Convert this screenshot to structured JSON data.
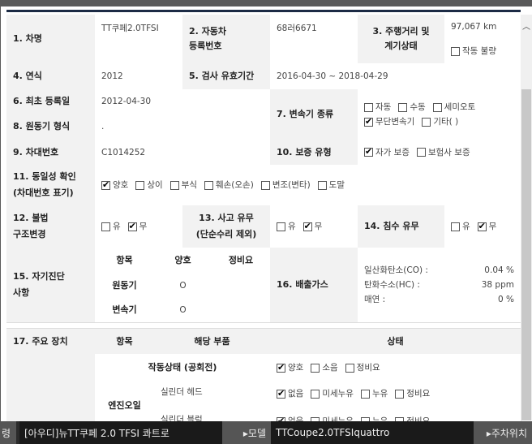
{
  "labels": {
    "car_name": "1. 차명",
    "reg_no": "2. 자동차\n등록번호",
    "mileage": "3. 주행거리 및\n계기상태",
    "year": "4. 연식",
    "inspect": "5. 검사 유효기간",
    "first_reg": "6. 최초 등록일",
    "trans": "7. 변속기 종류",
    "engine_type": "8. 원동기 형식",
    "vin": "9. 차대번호",
    "warranty": "10. 보증 유형",
    "identity": "11. 동일성 확인\n(차대번호 표기)",
    "illegal": "12. 불법\n구조변경",
    "accident": "13. 사고 유무\n(단순수리 제외)",
    "flood": "14. 침수 유무",
    "selfdiag": "15. 자기진단\n사항",
    "emission": "16. 배출가스",
    "major": "17. 주요 장치"
  },
  "values": {
    "car_name": "TT쿠페2.0TFSI",
    "reg_no": "68러6671",
    "mileage": "97,067 km",
    "year": "2012",
    "inspect": "2016-04-30 ~ 2018-04-29",
    "first_reg": "2012-04-30",
    "engine_type": ".",
    "vin": "C1014252"
  },
  "checks": {
    "gauge": [
      {
        "label": "작동 불량",
        "checked": false
      }
    ],
    "trans": [
      {
        "label": "자동",
        "checked": false
      },
      {
        "label": "수동",
        "checked": false
      },
      {
        "label": "세미오토",
        "checked": false
      },
      {
        "label": "무단변속기",
        "checked": true
      },
      {
        "label": "기타( )",
        "checked": false
      }
    ],
    "warranty": [
      {
        "label": "자가 보증",
        "checked": true
      },
      {
        "label": "보험사 보증",
        "checked": false
      }
    ],
    "identity": [
      {
        "label": "양호",
        "checked": true
      },
      {
        "label": "상이",
        "checked": false
      },
      {
        "label": "부식",
        "checked": false
      },
      {
        "label": "훼손(오손)",
        "checked": false
      },
      {
        "label": "변조(변타)",
        "checked": false
      },
      {
        "label": "도말",
        "checked": false
      }
    ],
    "illegal": [
      {
        "label": "유",
        "checked": false
      },
      {
        "label": "무",
        "checked": true
      }
    ],
    "accident": [
      {
        "label": "유",
        "checked": false
      },
      {
        "label": "무",
        "checked": true
      }
    ],
    "flood": [
      {
        "label": "유",
        "checked": false
      },
      {
        "label": "무",
        "checked": true
      }
    ],
    "operation": [
      {
        "label": "양호",
        "checked": true
      },
      {
        "label": "소음",
        "checked": false
      },
      {
        "label": "정비요",
        "checked": false
      }
    ],
    "cyl_head": [
      {
        "label": "없음",
        "checked": true
      },
      {
        "label": "미세누유",
        "checked": false
      },
      {
        "label": "누유",
        "checked": false
      },
      {
        "label": "정비요",
        "checked": false
      }
    ],
    "cyl_block": [
      {
        "label": "없음",
        "checked": true
      },
      {
        "label": "미세누유",
        "checked": false
      },
      {
        "label": "누유",
        "checked": false
      },
      {
        "label": "정비요",
        "checked": false
      }
    ]
  },
  "selfdiag": {
    "headers": [
      "항목",
      "양호",
      "정비요"
    ],
    "rows": [
      {
        "item": "원동기",
        "good": "O",
        "repair": ""
      },
      {
        "item": "변속기",
        "good": "O",
        "repair": ""
      }
    ]
  },
  "emission": [
    {
      "label": "일산화탄소(CO) :",
      "value": "0.04 %"
    },
    {
      "label": "탄화수소(HC) :",
      "value": "38 ppm"
    },
    {
      "label": "매연 :",
      "value": "0 %"
    }
  ],
  "major": {
    "headers": [
      "항목",
      "해당 부품",
      "상태"
    ],
    "operation": "작동상태 (공회전)",
    "engine_oil": "엔진오일",
    "cyl_head": "실린더 헤드",
    "cyl_block": "실린더 블럭"
  },
  "bottom": {
    "label0": "령",
    "value0": "[아우디]뉴TT쿠페 2.0 TFSI 콰트로",
    "label1": "▸모델",
    "value1": "TTCoupe2.0TFSIquattro",
    "label2": "▸주차위치"
  }
}
